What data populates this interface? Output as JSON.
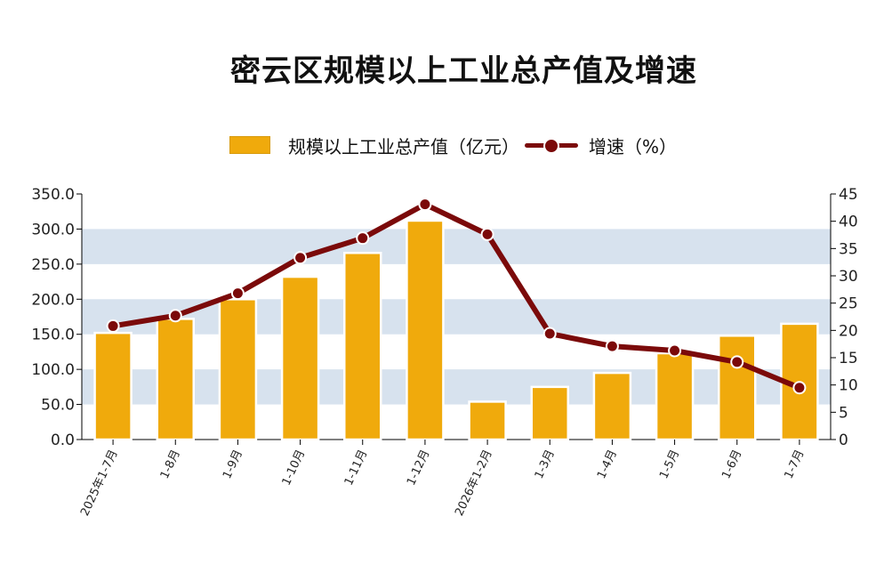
{
  "chart_data": {
    "type": "bar",
    "title": "密云区规模以上工业总产值及增速",
    "categories": [
      "2025年1-7月",
      "1-8月",
      "1-9月",
      "1-10月",
      "1-11月",
      "1-12月",
      "2026年1-2月",
      "1-3月",
      "1-4月",
      "1-5月",
      "1-6月",
      "1-7月"
    ],
    "series": [
      {
        "name": "规模以上工业总产值（亿元）",
        "type": "bar",
        "axis": "left",
        "values": [
          152,
          172,
          200,
          232,
          266,
          312,
          54,
          75,
          95,
          123,
          148,
          165
        ]
      },
      {
        "name": "增速（%）",
        "type": "line",
        "axis": "right",
        "values": [
          20.8,
          22.7,
          26.8,
          33.3,
          36.9,
          43.1,
          37.6,
          19.4,
          17.1,
          16.3,
          14.2,
          9.5
        ]
      }
    ],
    "y_left": {
      "min": 0,
      "max": 350,
      "step": 50,
      "tick_labels": [
        "0.0",
        "50.0",
        "100.0",
        "150.0",
        "200.0",
        "250.0",
        "300.0",
        "350.0"
      ]
    },
    "y_right": {
      "min": 0,
      "max": 45,
      "step": 5,
      "tick_labels": [
        "0",
        "5",
        "10",
        "15",
        "20",
        "25",
        "30",
        "35",
        "40",
        "45"
      ]
    },
    "legend_position": "top-center",
    "grid": "alternating horizontal bands",
    "colors": {
      "bar": "#F0AA0C",
      "line": "#7B0A0A",
      "band": "#D7E2EE"
    }
  }
}
